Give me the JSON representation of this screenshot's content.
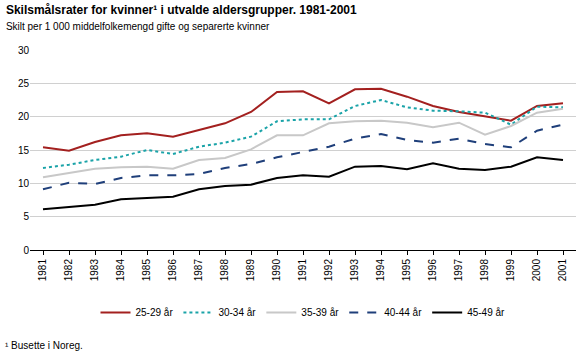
{
  "chart_data": {
    "type": "line",
    "title": "Skilsmålsrater for kvinner¹ i utvalde aldersgrupper. 1981-2001",
    "subtitle": "Skilt per 1 000 middelfolkemengd gifte og separerte kvinner",
    "note": "¹ Busette i Noreg.",
    "x": [
      1981,
      1982,
      1983,
      1984,
      1985,
      1986,
      1987,
      1988,
      1989,
      1990,
      1991,
      1992,
      1993,
      1994,
      1995,
      1996,
      1997,
      1998,
      1999,
      2000,
      2001
    ],
    "xlim": [
      1980.5,
      2001.5
    ],
    "xticks": [
      1981,
      1982,
      1983,
      1984,
      1985,
      1986,
      1987,
      1988,
      1989,
      1990,
      1991,
      1992,
      1993,
      1994,
      1995,
      1996,
      1997,
      1998,
      1999,
      2000,
      2001
    ],
    "ylim": [
      0,
      30
    ],
    "yticks": [
      0,
      5,
      10,
      15,
      20,
      25,
      30
    ],
    "grid": true,
    "legend": "bottom",
    "series": [
      {
        "name": "25-29 år",
        "color": "#a3201f",
        "line_style": "solid",
        "values": [
          15.4,
          14.9,
          16.2,
          17.2,
          17.5,
          17.0,
          18.0,
          19.0,
          20.7,
          23.7,
          23.8,
          22.0,
          24.1,
          24.2,
          23.0,
          21.6,
          20.7,
          20.1,
          19.4,
          21.6,
          22.0
        ]
      },
      {
        "name": "30-34 år",
        "color": "#1aa3a8",
        "line_style": "dot",
        "values": [
          12.3,
          12.8,
          13.5,
          14.0,
          15.0,
          14.4,
          15.5,
          16.1,
          17.0,
          19.3,
          19.6,
          19.6,
          21.6,
          22.5,
          21.4,
          20.9,
          20.8,
          20.6,
          18.8,
          21.5,
          21.4
        ]
      },
      {
        "name": "35-39 år",
        "color": "#c8c8c8",
        "line_style": "solid",
        "values": [
          10.9,
          11.6,
          12.2,
          12.4,
          12.5,
          12.2,
          13.5,
          13.8,
          15.1,
          17.2,
          17.2,
          19.0,
          19.3,
          19.4,
          19.1,
          18.4,
          19.1,
          17.3,
          18.6,
          20.6,
          21.2
        ]
      },
      {
        "name": "40-44 år",
        "color": "#1f3f7a",
        "line_style": "dash",
        "values": [
          9.1,
          10.1,
          9.9,
          10.8,
          11.2,
          11.2,
          11.4,
          12.3,
          12.9,
          13.9,
          14.7,
          15.5,
          16.7,
          17.4,
          16.5,
          16.1,
          16.7,
          15.9,
          15.4,
          17.9,
          18.8
        ]
      },
      {
        "name": "45-49 år",
        "color": "#000000",
        "line_style": "solid",
        "values": [
          6.1,
          6.4,
          6.8,
          7.6,
          7.8,
          8.0,
          9.1,
          9.6,
          9.8,
          10.8,
          11.2,
          11.0,
          12.5,
          12.6,
          12.1,
          13.0,
          12.2,
          12.0,
          12.5,
          13.9,
          13.5
        ]
      }
    ]
  }
}
